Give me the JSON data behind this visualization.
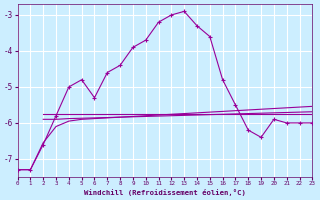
{
  "xlabel": "Windchill (Refroidissement éolien,°C)",
  "bg_color": "#cceeff",
  "grid_color": "#ffffff",
  "line_color": "#990099",
  "xticks": [
    0,
    1,
    2,
    3,
    4,
    5,
    6,
    7,
    8,
    9,
    10,
    11,
    12,
    13,
    14,
    15,
    16,
    17,
    18,
    19,
    20,
    21,
    22,
    23
  ],
  "yticks": [
    -7,
    -6,
    -5,
    -4,
    -3
  ],
  "ylim": [
    -7.5,
    -2.7
  ],
  "xlim": [
    0,
    23
  ],
  "series1_x": [
    0,
    1,
    2,
    3,
    4,
    5,
    6,
    7,
    8,
    9,
    10,
    11,
    12,
    13,
    14,
    15,
    16,
    17,
    18,
    19,
    20,
    21,
    22,
    23
  ],
  "series1_y": [
    -7.3,
    -7.3,
    -6.6,
    -5.8,
    -5.0,
    -4.8,
    -5.3,
    -4.6,
    -4.4,
    -3.9,
    -3.7,
    -3.2,
    -3.0,
    -2.9,
    -3.3,
    -3.6,
    -4.8,
    -5.5,
    -6.2,
    -6.4,
    -5.9,
    -6.0,
    -6.0,
    -6.0
  ],
  "series2_x": [
    2,
    3,
    4,
    5,
    6,
    7,
    8,
    9,
    10,
    11,
    12,
    13,
    14,
    15,
    16,
    17,
    18,
    19,
    20,
    21,
    22,
    23
  ],
  "series2_y": [
    -5.75,
    -5.75,
    -5.75,
    -5.75,
    -5.75,
    -5.75,
    -5.75,
    -5.75,
    -5.75,
    -5.75,
    -5.75,
    -5.75,
    -5.75,
    -5.75,
    -5.75,
    -5.75,
    -5.75,
    -5.75,
    -5.75,
    -5.75,
    -5.75,
    -5.75
  ],
  "series3_x": [
    2,
    3,
    4,
    5,
    6,
    7,
    8,
    9,
    10,
    11,
    12,
    13,
    14,
    15,
    16,
    17,
    18,
    19,
    20,
    21,
    22,
    23
  ],
  "series3_y": [
    -5.9,
    -5.9,
    -5.88,
    -5.87,
    -5.86,
    -5.85,
    -5.84,
    -5.83,
    -5.82,
    -5.81,
    -5.8,
    -5.79,
    -5.78,
    -5.77,
    -5.76,
    -5.75,
    -5.74,
    -5.73,
    -5.72,
    -5.71,
    -5.7,
    -5.69
  ],
  "series4_x": [
    0,
    1,
    2,
    3,
    4,
    5,
    6,
    7,
    8,
    9,
    10,
    11,
    12,
    13,
    14,
    15,
    16,
    17,
    18,
    19,
    20,
    21,
    22,
    23
  ],
  "series4_y": [
    -7.3,
    -7.3,
    -6.55,
    -6.1,
    -5.95,
    -5.9,
    -5.88,
    -5.86,
    -5.84,
    -5.82,
    -5.8,
    -5.78,
    -5.76,
    -5.74,
    -5.72,
    -5.7,
    -5.68,
    -5.66,
    -5.64,
    -5.62,
    -5.6,
    -5.58,
    -5.56,
    -5.54
  ]
}
